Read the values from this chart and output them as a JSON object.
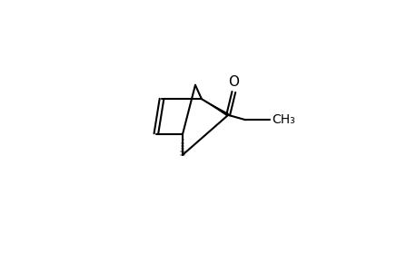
{
  "bg_color": "#ffffff",
  "line_color": "#000000",
  "line_width": 1.5,
  "wedge_color": "#000000",
  "dash_color": "#888888",
  "figsize": [
    4.6,
    3.0
  ],
  "dpi": 100
}
